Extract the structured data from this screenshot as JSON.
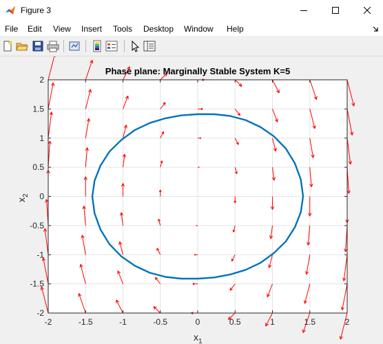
{
  "window": {
    "title": "Figure 3",
    "controls": [
      "minimize",
      "maximize",
      "close"
    ]
  },
  "menubar": {
    "items": [
      "File",
      "Edit",
      "View",
      "Insert",
      "Tools",
      "Desktop",
      "Window",
      "Help"
    ]
  },
  "toolbar": {
    "buttons": [
      "new-figure-icon",
      "open-file-icon",
      "save-icon",
      "print-icon",
      "link-plot-icon",
      "colorbar-icon",
      "legend-icon",
      "pointer-icon",
      "property-editor-icon"
    ]
  },
  "colors": {
    "trajectory": "#0072bd",
    "quiver": "#ff0000",
    "plot_background": "#ffffff",
    "figure_background": "#f0f0f0"
  },
  "chart_data": {
    "type": "scatter",
    "title": "Phase plane: Marginally Stable System K=5",
    "xlabel": "x",
    "xlabel_subscript": "1",
    "ylabel": "x",
    "ylabel_subscript": "2",
    "xlim": [
      -2,
      2
    ],
    "ylim": [
      -2,
      2
    ],
    "xticks": [
      -2,
      -1.5,
      -1,
      -0.5,
      0,
      0.5,
      1,
      1.5,
      2
    ],
    "yticks": [
      -2,
      -1.5,
      -1,
      -0.5,
      0,
      0.5,
      1,
      1.5,
      2
    ],
    "xtick_labels": [
      "-2",
      "-1.5",
      "-1",
      "-0.5",
      "0",
      "0.5",
      "1",
      "1.5",
      "2"
    ],
    "ytick_labels": [
      "-2",
      "-1.5",
      "-1",
      "-0.5",
      "0",
      "0.5",
      "1",
      "1.5",
      "2"
    ],
    "grid": true,
    "series": [
      {
        "kind": "line",
        "x": [
          1.41,
          1.38,
          1.3,
          1.18,
          1.02,
          0.84,
          0.64,
          0.43,
          0.22,
          0.0,
          -0.22,
          -0.43,
          -0.64,
          -0.84,
          -1.02,
          -1.18,
          -1.3,
          -1.38,
          -1.41,
          -1.38,
          -1.3,
          -1.18,
          -1.02,
          -0.84,
          -0.64,
          -0.43,
          -0.22,
          0.0,
          0.22,
          0.43,
          0.64,
          0.84,
          1.02,
          1.18,
          1.3,
          1.38,
          1.41
        ],
        "y": [
          0.0,
          0.29,
          0.57,
          0.82,
          1.03,
          1.19,
          1.31,
          1.38,
          1.41,
          1.41,
          1.39,
          1.34,
          1.26,
          1.14,
          0.97,
          0.77,
          0.53,
          0.27,
          0.0,
          -0.29,
          -0.57,
          -0.82,
          -1.03,
          -1.19,
          -1.31,
          -1.38,
          -1.41,
          -1.41,
          -1.39,
          -1.34,
          -1.26,
          -1.14,
          -0.97,
          -0.77,
          -0.53,
          -0.27,
          0.0
        ]
      },
      {
        "kind": "quiver",
        "grid_x": [
          -2,
          -1.5,
          -1,
          -0.5,
          0,
          0.5,
          1,
          1.5,
          2
        ],
        "grid_y": [
          -2,
          -1.5,
          -1,
          -0.5,
          0,
          0.5,
          1,
          1.5,
          2
        ],
        "field": "u = x2, v = -5*x1",
        "scale": 0.045
      }
    ]
  }
}
